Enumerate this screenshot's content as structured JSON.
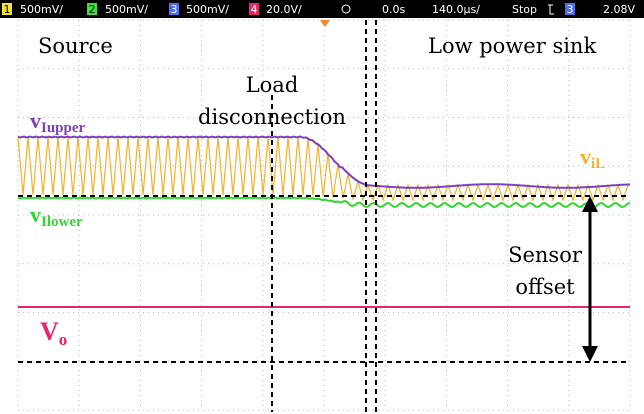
{
  "status_bar": {
    "ch1": {
      "num": "1",
      "scale": "500mV/"
    },
    "ch2": {
      "num": "2",
      "scale": "500mV/"
    },
    "ch3": {
      "num": "3",
      "scale": "500mV/"
    },
    "ch4": {
      "num": "4",
      "scale": "20.0V/"
    },
    "delay": "0.0s",
    "timebase": "140.0µs/",
    "state": "Stop",
    "trigger_channel": "3",
    "trigger_level": "2.08V"
  },
  "annotations": {
    "source": "Source",
    "sink": "Low power sink",
    "load_line1": "Load",
    "load_line2": "disconnection",
    "v_upper": {
      "main": "v",
      "sub": "Iupper"
    },
    "v_lower": {
      "main": "v",
      "sub": "Ilower"
    },
    "v_il": {
      "main": "v",
      "sub": "iL"
    },
    "v_o": {
      "main": "V",
      "sub": "o"
    },
    "offset_line1": "Sensor",
    "offset_line2": "offset"
  }
}
